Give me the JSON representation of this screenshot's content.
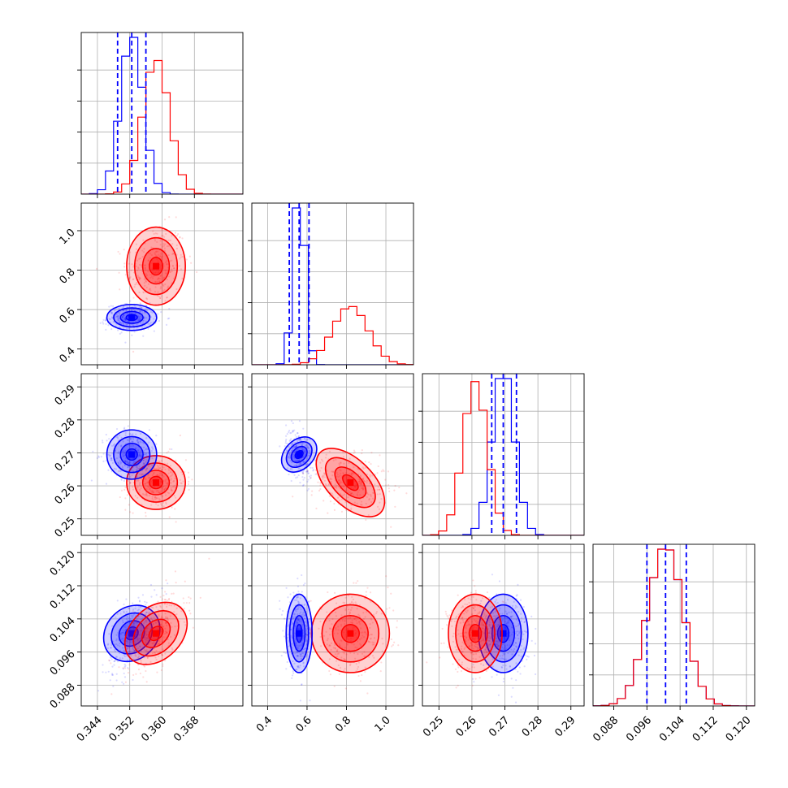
{
  "chart_data": {
    "type": "corner",
    "grid": true,
    "colors": {
      "blue": "#0000ff",
      "red": "#ff0000"
    },
    "parameters": [
      {
        "range": [
          0.34,
          0.38
        ],
        "ticks": [
          0.344,
          0.352,
          0.36,
          0.368
        ],
        "tick_labels": [
          "0.344",
          "0.352",
          "0.360",
          "0.368"
        ]
      },
      {
        "range": [
          0.32,
          1.14
        ],
        "ticks": [
          0.4,
          0.6,
          0.8,
          1.0
        ],
        "tick_labels": [
          "0.4",
          "0.6",
          "0.8",
          "1.0"
        ]
      },
      {
        "range": [
          0.245,
          0.294
        ],
        "ticks": [
          0.25,
          0.26,
          0.27,
          0.28,
          0.29
        ],
        "tick_labels": [
          "0.25",
          "0.26",
          "0.27",
          "0.28",
          "0.29"
        ]
      },
      {
        "range": [
          0.083,
          0.122
        ],
        "ticks": [
          0.088,
          0.096,
          0.104,
          0.112,
          0.12
        ],
        "tick_labels": [
          "0.088",
          "0.096",
          "0.104",
          "0.112",
          "0.120"
        ]
      }
    ],
    "series": [
      {
        "color": "blue",
        "means": [
          0.3525,
          0.56,
          0.2695,
          0.1005
        ],
        "stds": [
          0.0028,
          0.03,
          0.0034,
          0.0043
        ],
        "quantiles": [
          [
            0.349,
            0.3525,
            0.356
          ],
          [
            0.51,
            0.56,
            0.61
          ],
          [
            0.266,
            0.2695,
            0.2735
          ],
          [
            0.096,
            0.1005,
            0.1055
          ]
        ],
        "correlations": {
          "0-1": 0.0,
          "0-2": 0.0,
          "0-3": 0.55,
          "1-2": -0.3,
          "1-3": 0.0,
          "2-3": 0.0
        }
      },
      {
        "color": "red",
        "means": [
          0.3585,
          0.82,
          0.261,
          0.1005
        ],
        "stds": [
          0.0033,
          0.09,
          0.0037,
          0.0043
        ],
        "correlations": {
          "0-1": 0.15,
          "0-2": 0.05,
          "0-3": 0.55,
          "1-2": -0.25,
          "1-3": 0.05,
          "2-3": 0.0
        }
      }
    ]
  }
}
